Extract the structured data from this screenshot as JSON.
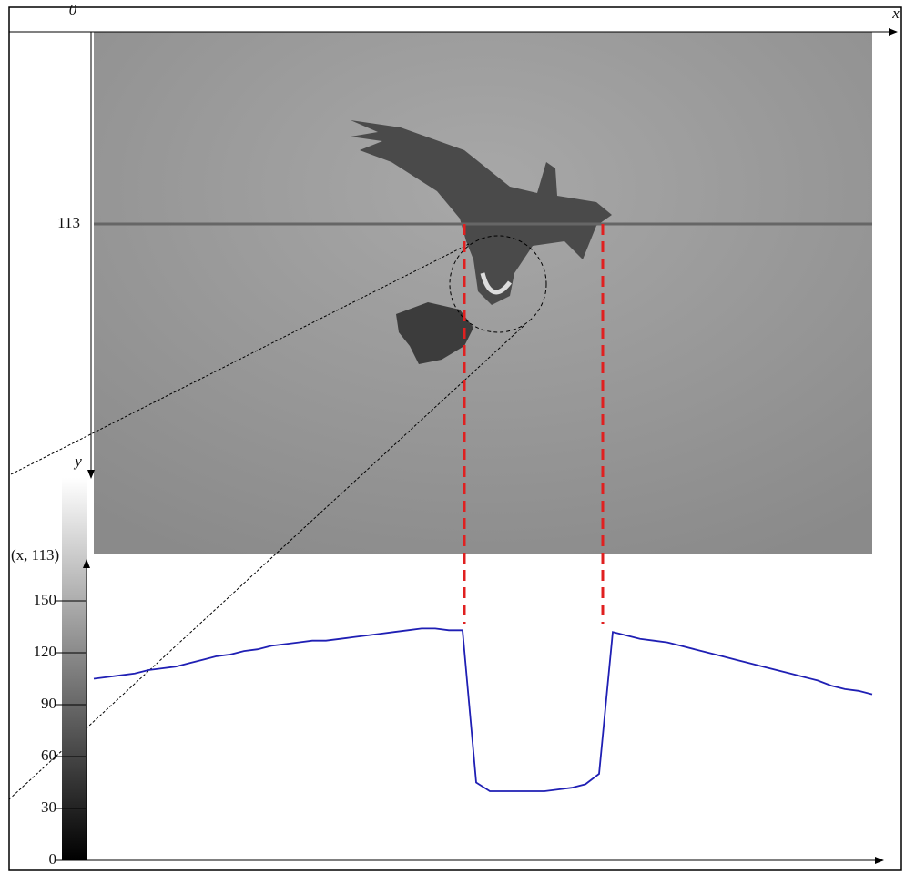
{
  "chart_data": {
    "type": "line",
    "origin_label": "0",
    "x_axis_label": "x",
    "y_axis_label": "y",
    "row_label": "113",
    "profile_label": "(x, 113)",
    "series": [
      {
        "color": "#1f1fb4",
        "values": [
          105,
          106,
          107,
          108,
          110,
          111,
          112,
          114,
          116,
          118,
          119,
          121,
          122,
          124,
          125,
          126,
          127,
          127,
          128,
          129,
          130,
          131,
          132,
          133,
          134,
          134,
          133,
          133,
          45,
          40,
          40,
          40,
          40,
          40,
          41,
          42,
          44,
          50,
          132,
          130,
          128,
          127,
          126,
          124,
          122,
          120,
          118,
          116,
          114,
          112,
          110,
          108,
          106,
          104,
          101,
          99,
          98,
          96
        ]
      }
    ],
    "ylim": [
      0,
      170
    ],
    "yticks": [
      0,
      30,
      60,
      90,
      120,
      150
    ]
  }
}
